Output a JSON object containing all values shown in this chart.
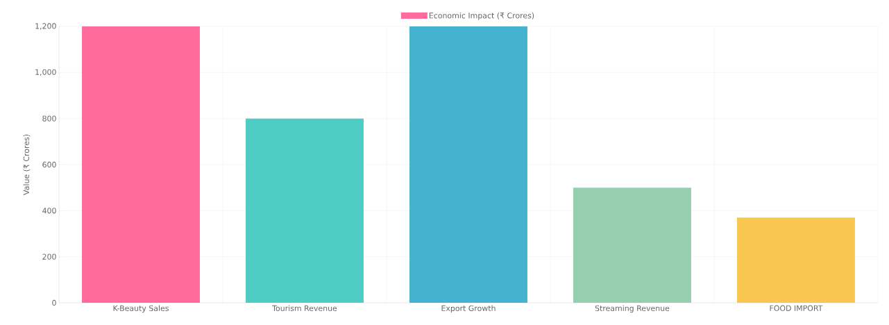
{
  "chart_data": {
    "type": "bar",
    "categories": [
      "K-Beauty Sales",
      "Tourism Revenue",
      "Export Growth",
      "Streaming Revenue",
      "FOOD IMPORT"
    ],
    "series": [
      {
        "name": "Economic Impact (₹ Crores)",
        "values": [
          1200,
          800,
          1200,
          500,
          370
        ]
      }
    ],
    "colors": [
      "#ff6b9a",
      "#4ecdc4",
      "#45b3d0",
      "#96cfb0",
      "#f9c74f"
    ],
    "ylabel": "Value (₹ Crores)",
    "ylim": [
      0,
      1200
    ],
    "yticks": [
      0,
      200,
      400,
      600,
      800,
      {
        "value": 1000,
        "label": "1,000"
      },
      {
        "value": 1200,
        "label": "1,200"
      }
    ],
    "grid": true,
    "legend": "top"
  }
}
